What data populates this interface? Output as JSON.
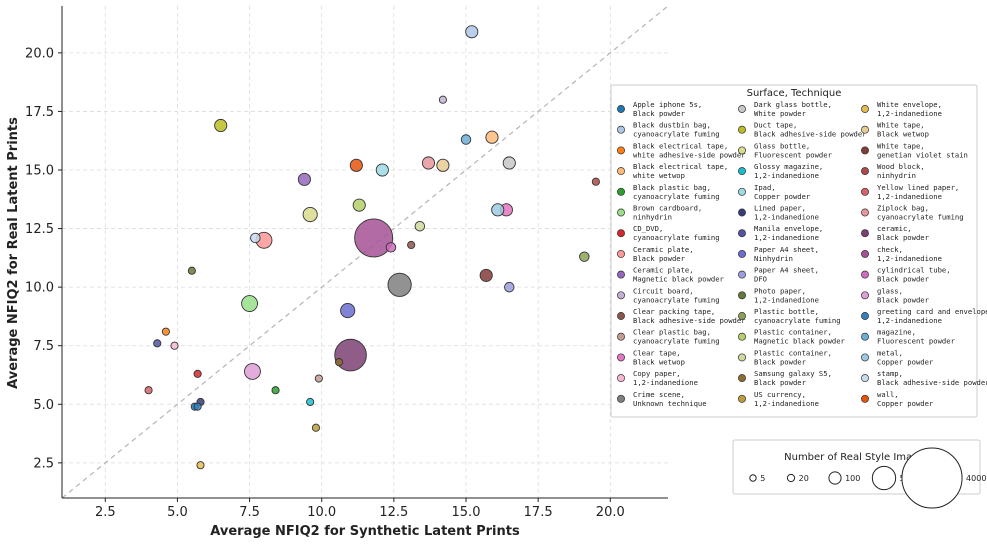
{
  "chart_data": {
    "type": "scatter",
    "xlabel": "Average NFIQ2 for Synthetic Latent Prints",
    "ylabel": "Average NFIQ2 for Real Latent Prints",
    "xlim": [
      1.0,
      22.0
    ],
    "ylim": [
      1.0,
      22.0
    ],
    "xticks": [
      "2.5",
      "5.0",
      "7.5",
      "10.0",
      "12.5",
      "15.0",
      "17.5",
      "20.0"
    ],
    "yticks": [
      "2.5",
      "5.0",
      "7.5",
      "10.0",
      "12.5",
      "15.0",
      "17.5",
      "20.0"
    ],
    "reference_line": "y = x (dashed)",
    "grid": true,
    "legend_title": "Surface, Technique",
    "size_legend_title": "Number of Real Style Images",
    "size_legend": [
      {
        "label": "5",
        "value": 5
      },
      {
        "label": "20",
        "value": 20
      },
      {
        "label": "100",
        "value": 100
      },
      {
        "label": "500",
        "value": 500
      },
      {
        "label": "4000",
        "value": 4000
      }
    ],
    "series": [
      {
        "surface": "Apple iphone 5s,",
        "technique": "Black powder",
        "color": "#1f77b4",
        "x": 5.6,
        "y": 4.9,
        "n": 20
      },
      {
        "surface": "Black dustbin bag,",
        "technique": "cyanoacrylate fuming",
        "color": "#aec7e8",
        "x": 15.2,
        "y": 20.9,
        "n": 100
      },
      {
        "surface": "Black electrical tape,",
        "technique": "white adhesive-side powder",
        "color": "#ff7f0e",
        "x": 4.6,
        "y": 8.1,
        "n": 20
      },
      {
        "surface": "Black electrical tape,",
        "technique": "white wetwop",
        "color": "#ffbb78",
        "x": 15.9,
        "y": 16.4,
        "n": 100
      },
      {
        "surface": "Black plastic bag,",
        "technique": "cyanoacrylate fuming",
        "color": "#2ca02c",
        "x": 8.4,
        "y": 5.6,
        "n": 20
      },
      {
        "surface": "Brown cardboard,",
        "technique": "ninhydrin",
        "color": "#98df8a",
        "x": 7.5,
        "y": 9.3,
        "n": 200
      },
      {
        "surface": "CD_DVD,",
        "technique": "cyanoacrylate fuming",
        "color": "#d62728",
        "x": 5.7,
        "y": 6.3,
        "n": 20
      },
      {
        "surface": "Ceramic plate,",
        "technique": "Black powder",
        "color": "#ff9896",
        "x": 8.0,
        "y": 12.0,
        "n": 200
      },
      {
        "surface": "Ceramic plate,",
        "technique": "Magnetic black powder",
        "color": "#9467bd",
        "x": 9.4,
        "y": 14.6,
        "n": 100
      },
      {
        "surface": "Circuit board,",
        "technique": "cyanoacrylate fuming",
        "color": "#c5b0d5",
        "x": 14.2,
        "y": 18.0,
        "n": 20
      },
      {
        "surface": "Clear packing tape,",
        "technique": "Black adhesive-side powder",
        "color": "#8c564b",
        "x": 13.1,
        "y": 11.8,
        "n": 20
      },
      {
        "surface": "Clear plastic bag,",
        "technique": "cyanoacrylate fuming",
        "color": "#c49c94",
        "x": 9.9,
        "y": 6.1,
        "n": 20
      },
      {
        "surface": "Clear tape,",
        "technique": "Black wetwop",
        "color": "#e377c2",
        "x": 16.4,
        "y": 13.3,
        "n": 100
      },
      {
        "surface": "Copy paper,",
        "technique": "1,2-indanedione",
        "color": "#f7b6d2",
        "x": 4.9,
        "y": 7.5,
        "n": 20
      },
      {
        "surface": "Crime scene,",
        "technique": "Unknown technique",
        "color": "#7f7f7f",
        "x": 12.7,
        "y": 10.1,
        "n": 500
      },
      {
        "surface": "Dark glass bottle,",
        "technique": "White powder",
        "color": "#c7c7c7",
        "x": 16.5,
        "y": 15.3,
        "n": 100
      },
      {
        "surface": "Duct tape,",
        "technique": "Black adhesive-side powder",
        "color": "#bcbd22",
        "x": 6.5,
        "y": 16.9,
        "n": 100
      },
      {
        "surface": "Glass bottle,",
        "technique": "Fluorescent powder",
        "color": "#dbdb8d",
        "x": 9.6,
        "y": 13.1,
        "n": 150
      },
      {
        "surface": "Glossy magazine,",
        "technique": "1,2-indanedione",
        "color": "#17becf",
        "x": 9.6,
        "y": 5.1,
        "n": 20
      },
      {
        "surface": "Ipad,",
        "technique": "Copper powder",
        "color": "#9edae5",
        "x": 12.1,
        "y": 15.0,
        "n": 100
      },
      {
        "surface": "Lined paper,",
        "technique": "1,2-indanedione",
        "color": "#393b79",
        "x": 5.8,
        "y": 5.1,
        "n": 20
      },
      {
        "surface": "Manila envelope,",
        "technique": "1,2-indanedione",
        "color": "#5254a3",
        "x": 4.3,
        "y": 7.6,
        "n": 20
      },
      {
        "surface": "Paper A4 sheet,",
        "technique": "Ninhydrin",
        "color": "#6b6ecf",
        "x": 10.9,
        "y": 9.0,
        "n": 150
      },
      {
        "surface": "Paper A4 sheet,",
        "technique": "DFO",
        "color": "#9c9ede",
        "x": 16.5,
        "y": 10.0,
        "n": 50
      },
      {
        "surface": "Photo paper,",
        "technique": "1,2-indanedione",
        "color": "#637939",
        "x": 5.5,
        "y": 10.7,
        "n": 20
      },
      {
        "surface": "Plastic bottle,",
        "technique": "cyanoacrylate fuming",
        "color": "#8ca252",
        "x": 19.1,
        "y": 11.3,
        "n": 50
      },
      {
        "surface": "Plastic container,",
        "technique": "Magnetic black powder",
        "color": "#b5cf6b",
        "x": 11.3,
        "y": 13.5,
        "n": 100
      },
      {
        "surface": "Plastic container,",
        "technique": "Black powder",
        "color": "#cedb9c",
        "x": 13.4,
        "y": 12.6,
        "n": 50
      },
      {
        "surface": "Samsung galaxy S5,",
        "technique": "Black powder",
        "color": "#8c6d31",
        "x": 10.6,
        "y": 6.8,
        "n": 20
      },
      {
        "surface": "US currency,",
        "technique": "1,2-indanedione",
        "color": "#bd9e39",
        "x": 9.8,
        "y": 4.0,
        "n": 20
      },
      {
        "surface": "White envelope,",
        "technique": "1,2-indanedione",
        "color": "#e7ba52",
        "x": 5.8,
        "y": 2.4,
        "n": 20
      },
      {
        "surface": "White tape,",
        "technique": "Black wetwop",
        "color": "#e7cb94",
        "x": 14.2,
        "y": 15.2,
        "n": 100
      },
      {
        "surface": "White tape,",
        "technique": "genetian violet stain",
        "color": "#843c39",
        "x": 15.7,
        "y": 10.5,
        "n": 100
      },
      {
        "surface": "Wood block,",
        "technique": "ninhydrin",
        "color": "#ad494a",
        "x": 19.5,
        "y": 14.5,
        "n": 20
      },
      {
        "surface": "Yellow lined paper,",
        "technique": "1,2-indanedione",
        "color": "#d6616b",
        "x": 4.0,
        "y": 5.6,
        "n": 20
      },
      {
        "surface": "Ziplock bag,",
        "technique": "cyanoacrylate fuming",
        "color": "#e7969c",
        "x": 13.7,
        "y": 15.3,
        "n": 100
      },
      {
        "surface": "ceramic,",
        "technique": "Black powder",
        "color": "#7b4173",
        "x": 11.0,
        "y": 7.1,
        "n": 1000
      },
      {
        "surface": "check,",
        "technique": "1,2-indanedione",
        "color": "#a55194",
        "x": 11.8,
        "y": 12.1,
        "n": 1500
      },
      {
        "surface": "cylindrical tube,",
        "technique": "Black powder",
        "color": "#ce6dbd",
        "x": 12.4,
        "y": 11.7,
        "n": 50
      },
      {
        "surface": "glass,",
        "technique": "Black powder",
        "color": "#de9ed6",
        "x": 7.6,
        "y": 6.4,
        "n": 200
      },
      {
        "surface": "greeting card and envelope,",
        "technique": "1,2-indanedione",
        "color": "#3182bd",
        "x": 5.7,
        "y": 4.9,
        "n": 20
      },
      {
        "surface": "magazine,",
        "technique": "Fluorescent powder",
        "color": "#6baed6",
        "x": 15.0,
        "y": 16.3,
        "n": 50
      },
      {
        "surface": "metal,",
        "technique": "Copper powder",
        "color": "#9ecae1",
        "x": 16.1,
        "y": 13.3,
        "n": 100
      },
      {
        "surface": "stamp,",
        "technique": "Black adhesive-side powder",
        "color": "#c6dbef",
        "x": 7.7,
        "y": 12.1,
        "n": 50
      },
      {
        "surface": "wall,",
        "technique": "Copper powder",
        "color": "#e6550d",
        "x": 11.2,
        "y": 15.2,
        "n": 100
      }
    ]
  }
}
